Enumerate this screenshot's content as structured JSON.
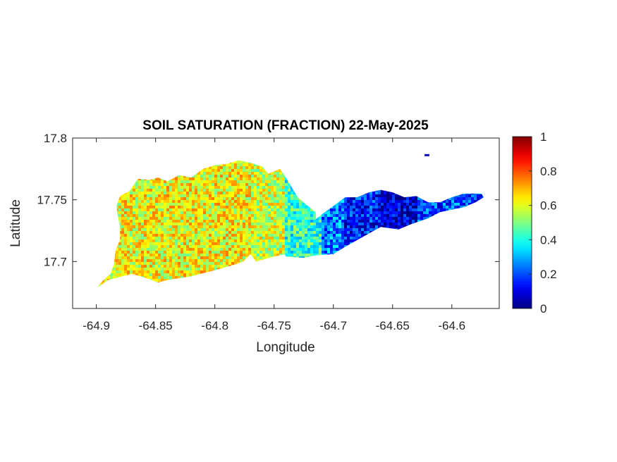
{
  "chart_data": {
    "type": "heatmap",
    "title": "SOIL SATURATION (FRACTION) 22-May-2025",
    "xlabel": "Longitude",
    "ylabel": "Latitude",
    "xlim": [
      -64.92,
      -64.56
    ],
    "ylim": [
      17.662,
      17.8
    ],
    "x_ticks": [
      -64.9,
      -64.85,
      -64.8,
      -64.75,
      -64.7,
      -64.65,
      -64.6
    ],
    "x_tick_labels": [
      "-64.9",
      "-64.85",
      "-64.8",
      "-64.75",
      "-64.7",
      "-64.65",
      "-64.6"
    ],
    "y_ticks": [
      17.7,
      17.75,
      17.8
    ],
    "y_tick_labels": [
      "17.7",
      "17.75",
      "17.8"
    ],
    "colorbar": {
      "colormap": "jet",
      "range": [
        0,
        1
      ],
      "ticks": [
        0,
        0.2,
        0.4,
        0.6,
        0.8,
        1
      ],
      "tick_labels": [
        "0",
        "0.2",
        "0.4",
        "0.6",
        "0.8",
        "1"
      ]
    },
    "regions": [
      {
        "lon_range": [
          -64.9,
          -64.77
        ],
        "mean_saturation": 0.62
      },
      {
        "lon_range": [
          -64.77,
          -64.74
        ],
        "mean_saturation": 0.58
      },
      {
        "lon_range": [
          -64.74,
          -64.71
        ],
        "mean_saturation": 0.42
      },
      {
        "lon_range": [
          -64.71,
          -64.69
        ],
        "mean_saturation": 0.25
      },
      {
        "lon_range": [
          -64.69,
          -64.66
        ],
        "mean_saturation": 0.15
      },
      {
        "lon_range": [
          -64.66,
          -64.63
        ],
        "mean_saturation": 0.08
      },
      {
        "lon_range": [
          -64.63,
          -64.57
        ],
        "mean_saturation": 0.2
      }
    ],
    "outline_west": [
      [
        -64.9,
        17.678
      ],
      [
        -64.895,
        17.684
      ],
      [
        -64.888,
        17.69
      ],
      [
        -64.885,
        17.698
      ],
      [
        -64.884,
        17.708
      ],
      [
        -64.88,
        17.718
      ],
      [
        -64.88,
        17.728
      ],
      [
        -64.882,
        17.738
      ],
      [
        -64.883,
        17.745
      ],
      [
        -64.88,
        17.753
      ],
      [
        -64.872,
        17.757
      ],
      [
        -64.865,
        17.767
      ],
      [
        -64.855,
        17.766
      ],
      [
        -64.848,
        17.768
      ],
      [
        -64.84,
        17.765
      ],
      [
        -64.83,
        17.77
      ],
      [
        -64.82,
        17.768
      ],
      [
        -64.81,
        17.775
      ],
      [
        -64.8,
        17.778
      ],
      [
        -64.79,
        17.779
      ],
      [
        -64.78,
        17.782
      ],
      [
        -64.77,
        17.78
      ],
      [
        -64.76,
        17.777
      ],
      [
        -64.755,
        17.771
      ],
      [
        -64.745,
        17.775
      ],
      [
        -64.74,
        17.768
      ],
      [
        -64.735,
        17.76
      ],
      [
        -64.73,
        17.752
      ],
      [
        -64.725,
        17.748
      ],
      [
        -64.72,
        17.744
      ],
      [
        -64.715,
        17.74
      ],
      [
        -64.714,
        17.728
      ],
      [
        -64.718,
        17.715
      ],
      [
        -64.725,
        17.71
      ],
      [
        -64.74,
        17.706
      ],
      [
        -64.75,
        17.704
      ],
      [
        -64.758,
        17.702
      ],
      [
        -64.765,
        17.7
      ],
      [
        -64.77,
        17.706
      ],
      [
        -64.776,
        17.7
      ],
      [
        -64.785,
        17.697
      ],
      [
        -64.8,
        17.693
      ],
      [
        -64.82,
        17.688
      ],
      [
        -64.84,
        17.685
      ],
      [
        -64.848,
        17.683
      ],
      [
        -64.856,
        17.686
      ],
      [
        -64.87,
        17.69
      ],
      [
        -64.89,
        17.685
      ],
      [
        -64.899,
        17.679
      ]
    ],
    "outline_east": [
      [
        -64.741,
        17.706
      ],
      [
        -64.73,
        17.717
      ],
      [
        -64.72,
        17.73
      ],
      [
        -64.71,
        17.738
      ],
      [
        -64.7,
        17.745
      ],
      [
        -64.69,
        17.752
      ],
      [
        -64.68,
        17.752
      ],
      [
        -64.67,
        17.756
      ],
      [
        -64.66,
        17.758
      ],
      [
        -64.65,
        17.756
      ],
      [
        -64.64,
        17.752
      ],
      [
        -64.63,
        17.753
      ],
      [
        -64.62,
        17.748
      ],
      [
        -64.61,
        17.748
      ],
      [
        -64.6,
        17.752
      ],
      [
        -64.59,
        17.755
      ],
      [
        -64.575,
        17.755
      ],
      [
        -64.573,
        17.752
      ],
      [
        -64.58,
        17.748
      ],
      [
        -64.59,
        17.744
      ],
      [
        -64.6,
        17.742
      ],
      [
        -64.61,
        17.74
      ],
      [
        -64.62,
        17.735
      ],
      [
        -64.635,
        17.73
      ],
      [
        -64.645,
        17.726
      ],
      [
        -64.66,
        17.728
      ],
      [
        -64.675,
        17.72
      ],
      [
        -64.69,
        17.712
      ],
      [
        -64.7,
        17.706
      ],
      [
        -64.715,
        17.705
      ],
      [
        -64.725,
        17.703
      ],
      [
        -64.74,
        17.704
      ]
    ],
    "islet": [
      [
        -64.623,
        17.786
      ],
      [
        -64.619,
        17.787
      ]
    ]
  }
}
